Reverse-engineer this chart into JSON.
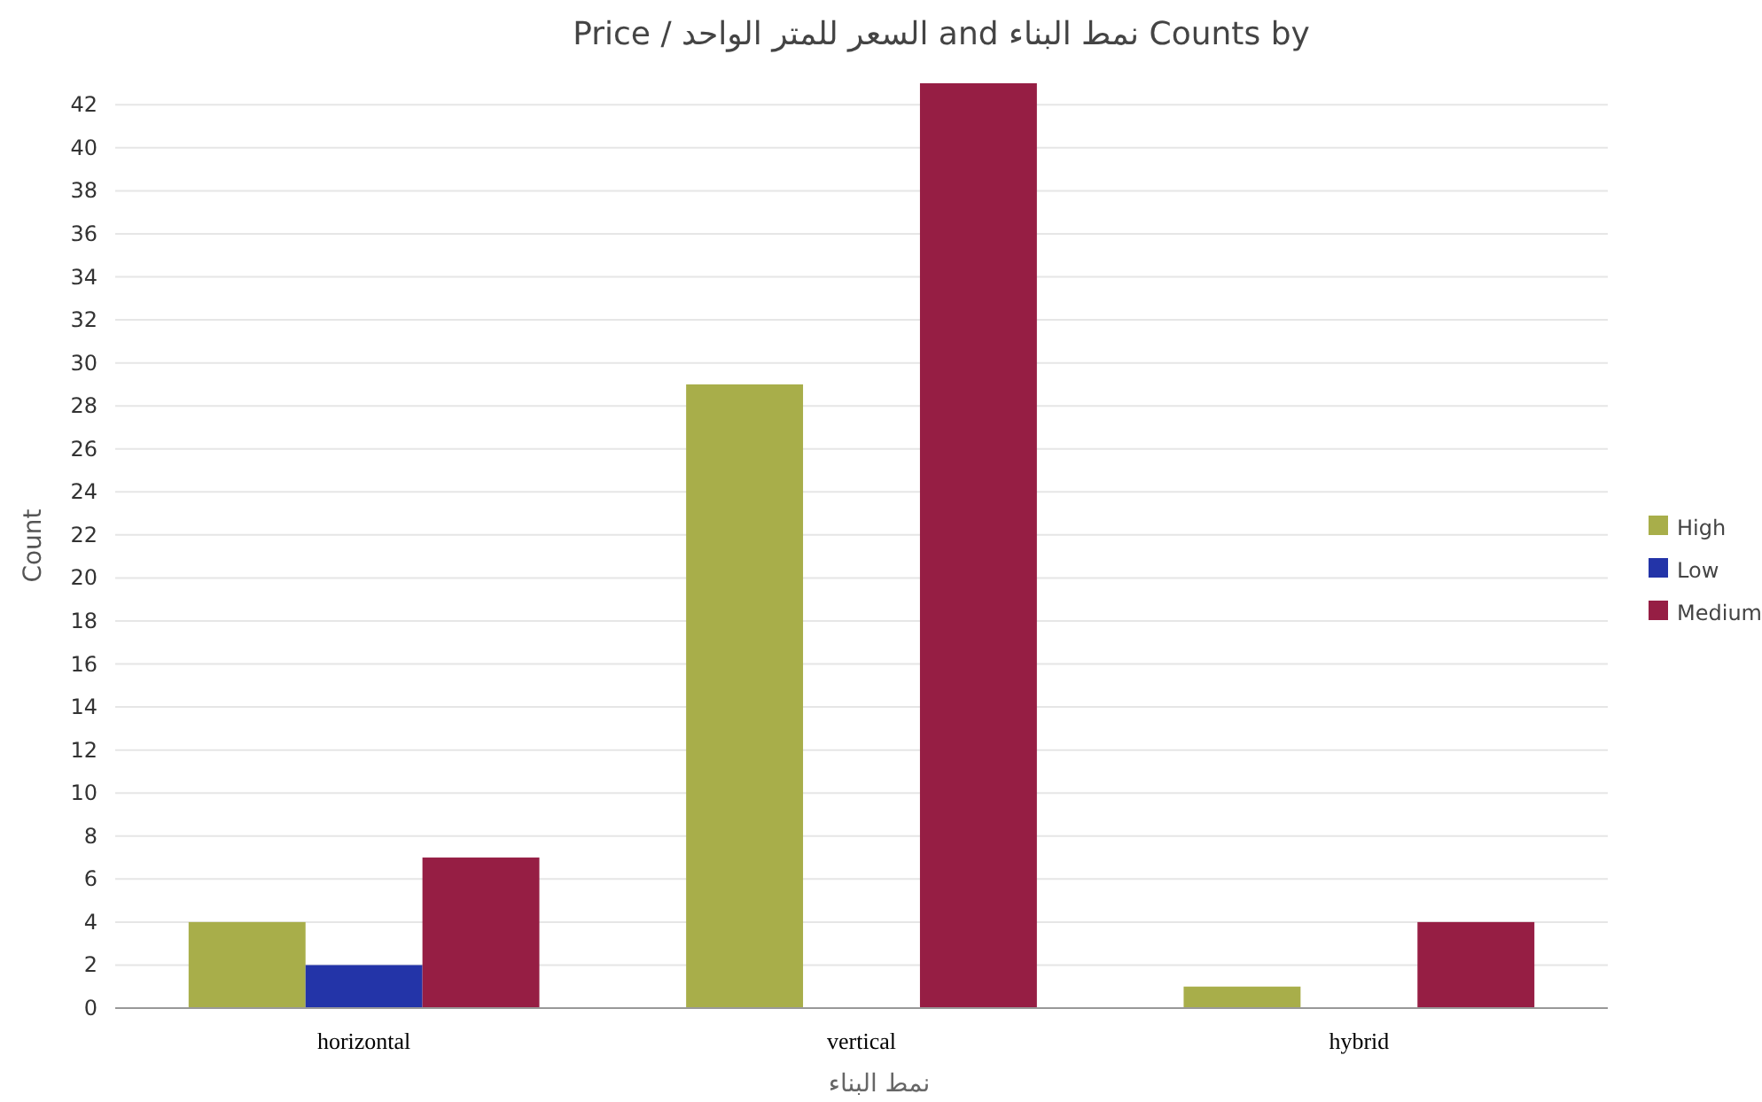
{
  "chart_data": {
    "type": "bar",
    "title": "Counts by نمط البناء and السعر للمتر الواحد / Price",
    "xlabel": "نمط البناء",
    "ylabel": "Count",
    "categories": [
      "horizontal",
      "vertical",
      "hybrid"
    ],
    "series": [
      {
        "name": "High",
        "color": "#a8ae4a",
        "values": [
          4,
          29,
          1
        ]
      },
      {
        "name": "Low",
        "color": "#2334a8",
        "values": [
          2,
          0,
          0
        ]
      },
      {
        "name": "Medium",
        "color": "#961e44",
        "values": [
          7,
          43,
          4
        ]
      }
    ],
    "ylim": [
      0,
      43
    ],
    "yticks": [
      0,
      2,
      4,
      6,
      8,
      10,
      12,
      14,
      16,
      18,
      20,
      22,
      24,
      26,
      28,
      30,
      32,
      34,
      36,
      38,
      40,
      42
    ],
    "grid": "y",
    "legend": "right"
  }
}
